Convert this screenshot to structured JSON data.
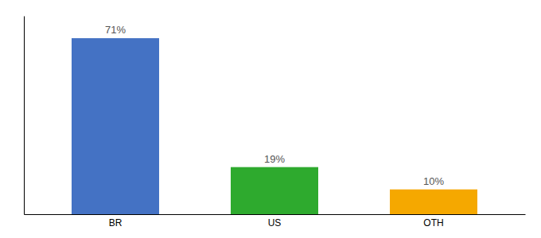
{
  "chart_data": {
    "type": "bar",
    "categories": [
      "BR",
      "US",
      "OTH"
    ],
    "values": [
      71,
      19,
      10
    ],
    "colors": [
      "#4472c4",
      "#2eaa2e",
      "#f5a800"
    ],
    "value_labels": [
      "71%",
      "19%",
      "10%"
    ],
    "data_labels": true,
    "ylim": [
      0,
      80
    ],
    "tick_labels": "x"
  }
}
